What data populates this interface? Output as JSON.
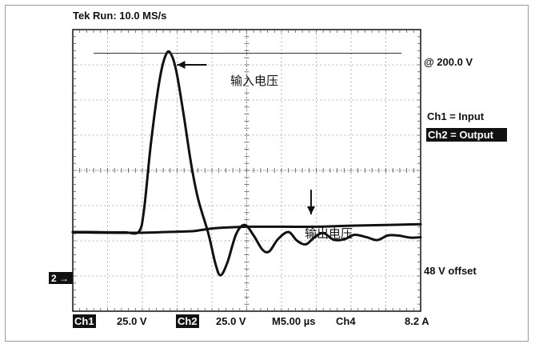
{
  "header": {
    "title": "Tek Run: 10.0 MS/s"
  },
  "right_labels": {
    "level": "@ 200.0 V",
    "ch1": "Ch1 = Input",
    "ch2": "Ch2 = Output",
    "offset": "48 V offset"
  },
  "annotations": {
    "input": "输入电压",
    "output": "输出电压"
  },
  "ground_marker": "2 →",
  "footer": {
    "ch1": "Ch1",
    "ch1_scale": "25.0 V",
    "ch2": "Ch2",
    "ch2_scale": "25.0 V",
    "time": "M5.00 µs",
    "ch4": "Ch4",
    "ch4_scale": "8.2 A"
  },
  "colors": {
    "trace": "#111111",
    "grid": "#555555",
    "label_bg": "#111111",
    "label_fg": "#ffffff"
  },
  "chart_data": {
    "type": "line",
    "grid": true,
    "x_divisions": 10,
    "y_divisions": 8,
    "xlim": [
      0,
      10
    ],
    "ylim": [
      -4,
      4
    ],
    "series": [
      {
        "name": "Input",
        "points": [
          [
            0,
            -1.75
          ],
          [
            0.5,
            -1.75
          ],
          [
            1,
            -1.76
          ],
          [
            1.5,
            -1.76
          ],
          [
            1.9,
            -1.74
          ],
          [
            2.05,
            -1.1
          ],
          [
            2.25,
            0.8
          ],
          [
            2.5,
            2.6
          ],
          [
            2.7,
            3.33
          ],
          [
            2.85,
            3.25
          ],
          [
            3.0,
            2.7
          ],
          [
            3.2,
            1.5
          ],
          [
            3.4,
            0.2
          ],
          [
            3.6,
            -0.8
          ],
          [
            3.9,
            -1.8
          ],
          [
            4.1,
            -2.65
          ],
          [
            4.25,
            -2.98
          ],
          [
            4.45,
            -2.6
          ],
          [
            4.7,
            -1.8
          ],
          [
            4.95,
            -1.55
          ],
          [
            5.2,
            -1.85
          ],
          [
            5.45,
            -2.25
          ],
          [
            5.65,
            -2.3
          ],
          [
            5.9,
            -1.95
          ],
          [
            6.2,
            -1.75
          ],
          [
            6.45,
            -2.0
          ],
          [
            6.7,
            -2.1
          ],
          [
            6.95,
            -1.9
          ],
          [
            7.2,
            -1.78
          ],
          [
            7.5,
            -1.97
          ],
          [
            7.8,
            -1.96
          ],
          [
            8.1,
            -1.83
          ],
          [
            8.45,
            -1.9
          ],
          [
            8.75,
            -1.98
          ],
          [
            9.05,
            -1.85
          ],
          [
            9.35,
            -1.85
          ],
          [
            9.7,
            -1.91
          ],
          [
            10,
            -1.9
          ]
        ]
      },
      {
        "name": "Output",
        "points": [
          [
            0,
            -1.76
          ],
          [
            1,
            -1.77
          ],
          [
            2,
            -1.77
          ],
          [
            3,
            -1.74
          ],
          [
            3.5,
            -1.72
          ],
          [
            4,
            -1.65
          ],
          [
            4.5,
            -1.62
          ],
          [
            5,
            -1.6
          ],
          [
            6,
            -1.6
          ],
          [
            7,
            -1.6
          ],
          [
            8,
            -1.57
          ],
          [
            9,
            -1.55
          ],
          [
            10,
            -1.53
          ]
        ]
      }
    ],
    "reference_level": 3.33,
    "arrows": [
      {
        "name": "input",
        "tip": [
          3.0,
          3.0
        ],
        "tail": [
          3.85,
          3.0
        ]
      },
      {
        "name": "output",
        "tip": [
          6.85,
          -1.25
        ],
        "tail": [
          6.85,
          -0.55
        ]
      }
    ]
  }
}
